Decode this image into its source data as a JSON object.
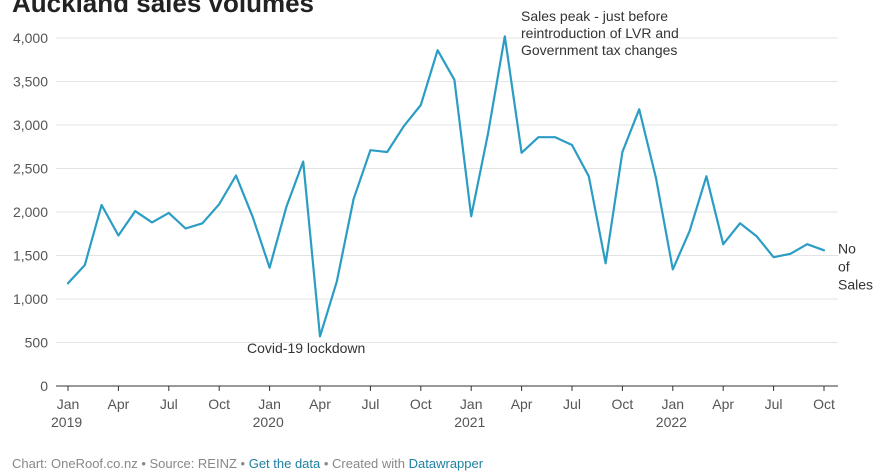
{
  "chart_data": {
    "type": "line",
    "title": "Auckland sales volumes",
    "ylim": [
      0,
      4000
    ],
    "yticks": [
      0,
      500,
      1000,
      1500,
      2000,
      2500,
      3000,
      3500,
      4000
    ],
    "ytick_labels": [
      "0",
      "500",
      "1,000",
      "1,500",
      "2,000",
      "2,500",
      "3,000",
      "3,500",
      "4,000"
    ],
    "grid": true,
    "x_ticks": [
      {
        "month": 0,
        "label": "Jan",
        "year": "2019"
      },
      {
        "month": 3,
        "label": "Apr",
        "year": ""
      },
      {
        "month": 6,
        "label": "Jul",
        "year": ""
      },
      {
        "month": 9,
        "label": "Oct",
        "year": ""
      },
      {
        "month": 12,
        "label": "Jan",
        "year": "2020"
      },
      {
        "month": 15,
        "label": "Apr",
        "year": ""
      },
      {
        "month": 18,
        "label": "Jul",
        "year": ""
      },
      {
        "month": 21,
        "label": "Oct",
        "year": ""
      },
      {
        "month": 24,
        "label": "Jan",
        "year": "2021"
      },
      {
        "month": 27,
        "label": "Apr",
        "year": ""
      },
      {
        "month": 30,
        "label": "Jul",
        "year": ""
      },
      {
        "month": 33,
        "label": "Oct",
        "year": ""
      },
      {
        "month": 36,
        "label": "Jan",
        "year": "2022"
      },
      {
        "month": 39,
        "label": "Apr",
        "year": ""
      },
      {
        "month": 42,
        "label": "Jul",
        "year": ""
      },
      {
        "month": 45,
        "label": "Oct",
        "year": ""
      }
    ],
    "series": [
      {
        "name": "No of Sales",
        "color": "#2b9dc4",
        "start": "Jan 2019",
        "values": [
          1180,
          1390,
          2080,
          1730,
          2010,
          1880,
          1990,
          1810,
          1870,
          2090,
          2420,
          1940,
          1360,
          2060,
          2580,
          570,
          1200,
          2150,
          2710,
          2690,
          2990,
          3230,
          3860,
          3520,
          1950,
          2900,
          4020,
          2680,
          2860,
          2860,
          2770,
          2410,
          1410,
          2690,
          3180,
          2390,
          1340,
          1780,
          2410,
          1630,
          1870,
          1720,
          1480,
          1520,
          1630,
          1560
        ]
      }
    ],
    "annotations": [
      {
        "text_lines": [
          "Sales peak - just before",
          "reintroduction of LVR and",
          "Government tax changes"
        ],
        "month": 26
      },
      {
        "text_lines": [
          "Covid-19 lockdown"
        ],
        "month": 15
      }
    ]
  },
  "footer": {
    "prefix": "Chart: OneRoof.co.nz • Source: REINZ • ",
    "link1": "Get the data",
    "middle": " • Created with ",
    "link2": "Datawrapper"
  }
}
